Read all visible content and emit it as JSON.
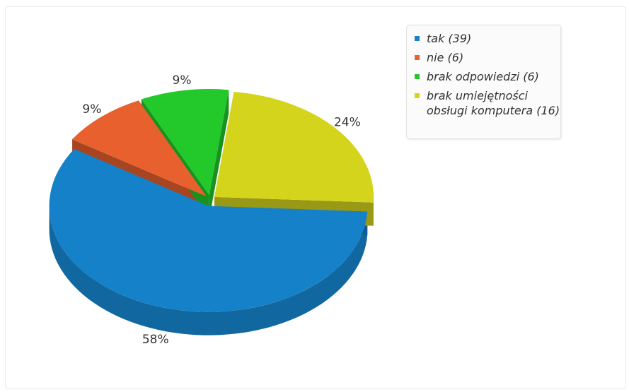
{
  "chart_data": {
    "type": "pie",
    "style": "3d-exploded",
    "categories": [
      "tak",
      "nie",
      "brak odpowiedzi",
      "brak umiejętności obsługi komputera"
    ],
    "values": [
      39,
      6,
      6,
      16
    ],
    "percent_labels": [
      "58%",
      "9%",
      "9%",
      "24%"
    ],
    "colors": [
      "#1581c8",
      "#e8602e",
      "#23c92b",
      "#d5d41d"
    ],
    "legend": {
      "position": "top-right",
      "items": [
        {
          "lines": [
            "tak (39)"
          ]
        },
        {
          "lines": [
            "nie (6)"
          ]
        },
        {
          "lines": [
            "brak odpowiedzi (6)"
          ]
        },
        {
          "lines": [
            "brak umiejętności",
            "obsługi komputera (16)"
          ]
        }
      ]
    }
  }
}
